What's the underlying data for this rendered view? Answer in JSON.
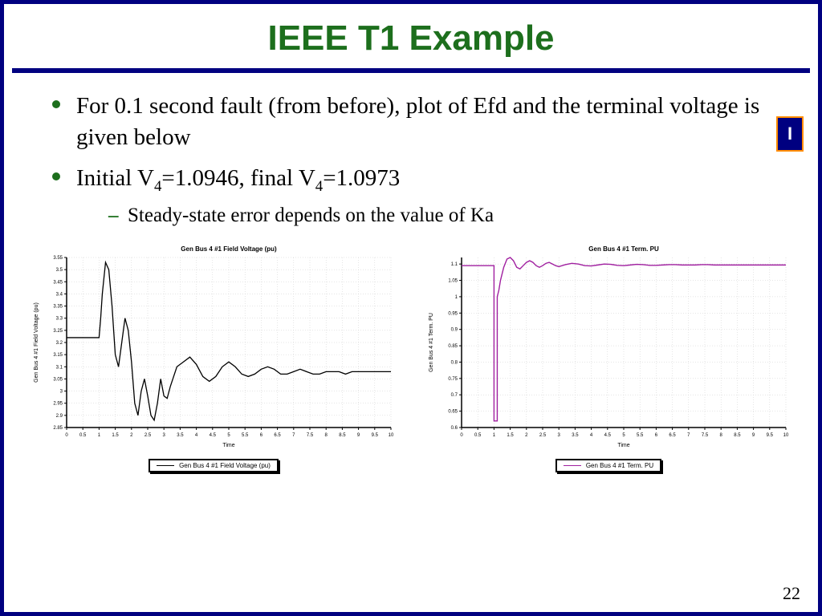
{
  "title": "IEEE T1 Example",
  "bullets": {
    "b1": "For 0.1 second fault (from before), plot of Efd and the terminal voltage is given below",
    "b2a": "Initial V",
    "b2sub1": "4",
    "b2b": "=1.0946, final V",
    "b2sub2": "4",
    "b2c": "=1.0973",
    "sub1": "Steady-state error depends on the value of Ka"
  },
  "logo": "I",
  "page": "22",
  "chart1": {
    "type": "line",
    "title": "Gen Bus 4 #1 Field Voltage (pu)",
    "xlabel": "Time",
    "ylabel": "Gen Bus 4 #1 Field Voltage (pu)",
    "legend": "Gen Bus 4 #1 Field Voltage (pu)",
    "xlim": [
      0,
      10
    ],
    "xtick_step": 0.5,
    "ylim": [
      2.85,
      3.55
    ],
    "ytick_step": 0.05,
    "line_color": "#000000",
    "line_width": 1.3,
    "grid_color": "#cccccc",
    "bg": "#ffffff",
    "title_fontsize": 8,
    "label_fontsize": 7,
    "tick_fontsize": 6,
    "data": [
      [
        0,
        3.22
      ],
      [
        0.1,
        3.22
      ],
      [
        0.95,
        3.22
      ],
      [
        1.0,
        3.22
      ],
      [
        1.05,
        3.3
      ],
      [
        1.1,
        3.4
      ],
      [
        1.2,
        3.53
      ],
      [
        1.3,
        3.5
      ],
      [
        1.4,
        3.35
      ],
      [
        1.5,
        3.15
      ],
      [
        1.6,
        3.1
      ],
      [
        1.7,
        3.2
      ],
      [
        1.8,
        3.3
      ],
      [
        1.9,
        3.25
      ],
      [
        2.0,
        3.12
      ],
      [
        2.1,
        2.95
      ],
      [
        2.2,
        2.9
      ],
      [
        2.3,
        3.0
      ],
      [
        2.4,
        3.05
      ],
      [
        2.5,
        2.98
      ],
      [
        2.6,
        2.9
      ],
      [
        2.7,
        2.88
      ],
      [
        2.8,
        2.95
      ],
      [
        2.9,
        3.05
      ],
      [
        3.0,
        2.98
      ],
      [
        3.1,
        2.97
      ],
      [
        3.2,
        3.02
      ],
      [
        3.4,
        3.1
      ],
      [
        3.6,
        3.12
      ],
      [
        3.8,
        3.14
      ],
      [
        4.0,
        3.11
      ],
      [
        4.2,
        3.06
      ],
      [
        4.4,
        3.04
      ],
      [
        4.6,
        3.06
      ],
      [
        4.8,
        3.1
      ],
      [
        5.0,
        3.12
      ],
      [
        5.2,
        3.1
      ],
      [
        5.4,
        3.07
      ],
      [
        5.6,
        3.06
      ],
      [
        5.8,
        3.07
      ],
      [
        6.0,
        3.09
      ],
      [
        6.2,
        3.1
      ],
      [
        6.4,
        3.09
      ],
      [
        6.6,
        3.07
      ],
      [
        6.8,
        3.07
      ],
      [
        7.0,
        3.08
      ],
      [
        7.2,
        3.09
      ],
      [
        7.4,
        3.08
      ],
      [
        7.6,
        3.07
      ],
      [
        7.8,
        3.07
      ],
      [
        8.0,
        3.08
      ],
      [
        8.2,
        3.08
      ],
      [
        8.4,
        3.08
      ],
      [
        8.6,
        3.07
      ],
      [
        8.8,
        3.08
      ],
      [
        9.0,
        3.08
      ],
      [
        9.2,
        3.08
      ],
      [
        9.4,
        3.08
      ],
      [
        9.6,
        3.08
      ],
      [
        9.8,
        3.08
      ],
      [
        10.0,
        3.08
      ]
    ]
  },
  "chart2": {
    "type": "line",
    "title": "Gen Bus 4 #1 Term. PU",
    "xlabel": "Time",
    "ylabel": "Gen Bus 4 #1 Term. PU",
    "legend": "Gen Bus 4 #1 Term. PU",
    "xlim": [
      0,
      10
    ],
    "xtick_step": 0.5,
    "ylim": [
      0.6,
      1.12
    ],
    "ytick_step": 0.05,
    "line_color": "#a020a0",
    "line_width": 1.4,
    "grid_color": "#cccccc",
    "bg": "#ffffff",
    "title_fontsize": 8,
    "label_fontsize": 7,
    "tick_fontsize": 6,
    "data": [
      [
        0,
        1.095
      ],
      [
        0.95,
        1.095
      ],
      [
        1.0,
        1.095
      ],
      [
        1.0,
        0.62
      ],
      [
        1.05,
        0.62
      ],
      [
        1.1,
        0.62
      ],
      [
        1.1,
        1.0
      ],
      [
        1.15,
        1.02
      ],
      [
        1.2,
        1.05
      ],
      [
        1.3,
        1.09
      ],
      [
        1.4,
        1.115
      ],
      [
        1.5,
        1.12
      ],
      [
        1.6,
        1.11
      ],
      [
        1.7,
        1.09
      ],
      [
        1.8,
        1.085
      ],
      [
        1.9,
        1.095
      ],
      [
        2.0,
        1.105
      ],
      [
        2.1,
        1.11
      ],
      [
        2.2,
        1.105
      ],
      [
        2.3,
        1.095
      ],
      [
        2.4,
        1.09
      ],
      [
        2.5,
        1.095
      ],
      [
        2.6,
        1.102
      ],
      [
        2.7,
        1.105
      ],
      [
        2.8,
        1.1
      ],
      [
        2.9,
        1.095
      ],
      [
        3.0,
        1.092
      ],
      [
        3.2,
        1.098
      ],
      [
        3.4,
        1.102
      ],
      [
        3.6,
        1.1
      ],
      [
        3.8,
        1.095
      ],
      [
        4.0,
        1.094
      ],
      [
        4.2,
        1.097
      ],
      [
        4.4,
        1.1
      ],
      [
        4.6,
        1.099
      ],
      [
        4.8,
        1.096
      ],
      [
        5.0,
        1.095
      ],
      [
        5.2,
        1.097
      ],
      [
        5.4,
        1.099
      ],
      [
        5.6,
        1.098
      ],
      [
        5.8,
        1.096
      ],
      [
        6.0,
        1.096
      ],
      [
        6.2,
        1.097
      ],
      [
        6.4,
        1.098
      ],
      [
        6.6,
        1.098
      ],
      [
        6.8,
        1.097
      ],
      [
        7.0,
        1.097
      ],
      [
        7.2,
        1.097
      ],
      [
        7.4,
        1.098
      ],
      [
        7.6,
        1.098
      ],
      [
        7.8,
        1.097
      ],
      [
        8.0,
        1.097
      ],
      [
        8.5,
        1.097
      ],
      [
        9.0,
        1.097
      ],
      [
        9.5,
        1.097
      ],
      [
        10.0,
        1.097
      ]
    ]
  }
}
